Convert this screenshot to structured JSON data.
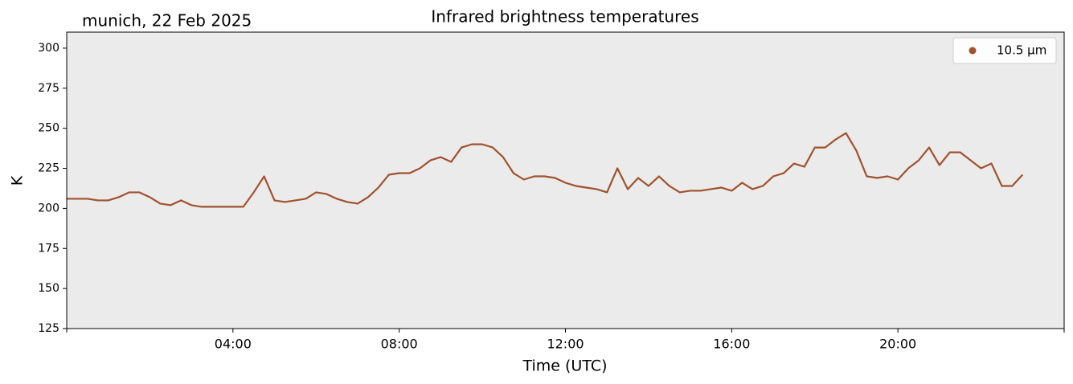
{
  "chart_data": {
    "type": "line",
    "title": "Infrared brightness temperatures",
    "subtitle": "munich, 22 Feb 2025",
    "xlabel": "Time (UTC)",
    "ylabel": "K",
    "x": [
      "00:00",
      "00:15",
      "00:30",
      "00:45",
      "01:00",
      "01:15",
      "01:30",
      "01:45",
      "02:00",
      "02:15",
      "02:30",
      "02:45",
      "03:00",
      "03:15",
      "03:30",
      "03:45",
      "04:00",
      "04:15",
      "04:30",
      "04:45",
      "05:00",
      "05:15",
      "05:30",
      "05:45",
      "06:00",
      "06:15",
      "06:30",
      "06:45",
      "07:00",
      "07:15",
      "07:30",
      "07:45",
      "08:00",
      "08:15",
      "08:30",
      "08:45",
      "09:00",
      "09:15",
      "09:30",
      "09:45",
      "10:00",
      "10:15",
      "10:30",
      "10:45",
      "11:00",
      "11:15",
      "11:30",
      "11:45",
      "12:00",
      "12:15",
      "12:30",
      "12:45",
      "13:00",
      "13:15",
      "13:30",
      "13:45",
      "14:00",
      "14:15",
      "14:30",
      "14:45",
      "15:00",
      "15:15",
      "15:30",
      "15:45",
      "16:00",
      "16:15",
      "16:30",
      "16:45",
      "17:00",
      "17:15",
      "17:30",
      "17:45",
      "18:00",
      "18:15",
      "18:30",
      "18:45",
      "19:00",
      "19:15",
      "19:30",
      "19:45",
      "20:00",
      "20:15",
      "20:30",
      "20:45",
      "21:00",
      "21:15",
      "21:30",
      "21:45",
      "22:00",
      "22:15",
      "22:30",
      "22:45",
      "23:00"
    ],
    "series": [
      {
        "name": "10.5 µm",
        "color": "#a0522d",
        "values": [
          206,
          206,
          206,
          205,
          205,
          207,
          210,
          210,
          207,
          203,
          202,
          205,
          202,
          201,
          201,
          201,
          201,
          201,
          210,
          220,
          205,
          204,
          205,
          206,
          210,
          209,
          206,
          204,
          203,
          207,
          213,
          221,
          222,
          222,
          225,
          230,
          232,
          229,
          238,
          240,
          240,
          238,
          232,
          222,
          218,
          220,
          220,
          219,
          216,
          214,
          213,
          212,
          210,
          225,
          212,
          219,
          214,
          220,
          214,
          210,
          211,
          211,
          212,
          213,
          211,
          216,
          212,
          214,
          220,
          222,
          228,
          226,
          238,
          238,
          243,
          247,
          236,
          220,
          219,
          220,
          218,
          225,
          230,
          238,
          227,
          235,
          235,
          230,
          225,
          228,
          214,
          214,
          221
        ]
      }
    ],
    "xlim": [
      "00:00",
      "24:00"
    ],
    "xticks": [
      "04:00",
      "08:00",
      "12:00",
      "16:00",
      "20:00"
    ],
    "ylim": [
      125,
      310
    ],
    "yticks": [
      125,
      150,
      175,
      200,
      225,
      250,
      275,
      300
    ],
    "grid": false,
    "legend": "upper right",
    "background": "#ebebeb"
  }
}
